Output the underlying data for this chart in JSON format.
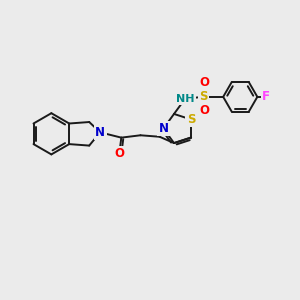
{
  "bg_color": "#ebebeb",
  "bond_color": "#1a1a1a",
  "bond_width": 1.4,
  "atom_colors": {
    "N": "#0000cc",
    "S_thio": "#ccaa00",
    "S_sulfo": "#ccaa00",
    "O": "#ff0000",
    "F": "#ff44ff",
    "NH": "#008888",
    "C": "#1a1a1a"
  },
  "font_size": 8.5
}
